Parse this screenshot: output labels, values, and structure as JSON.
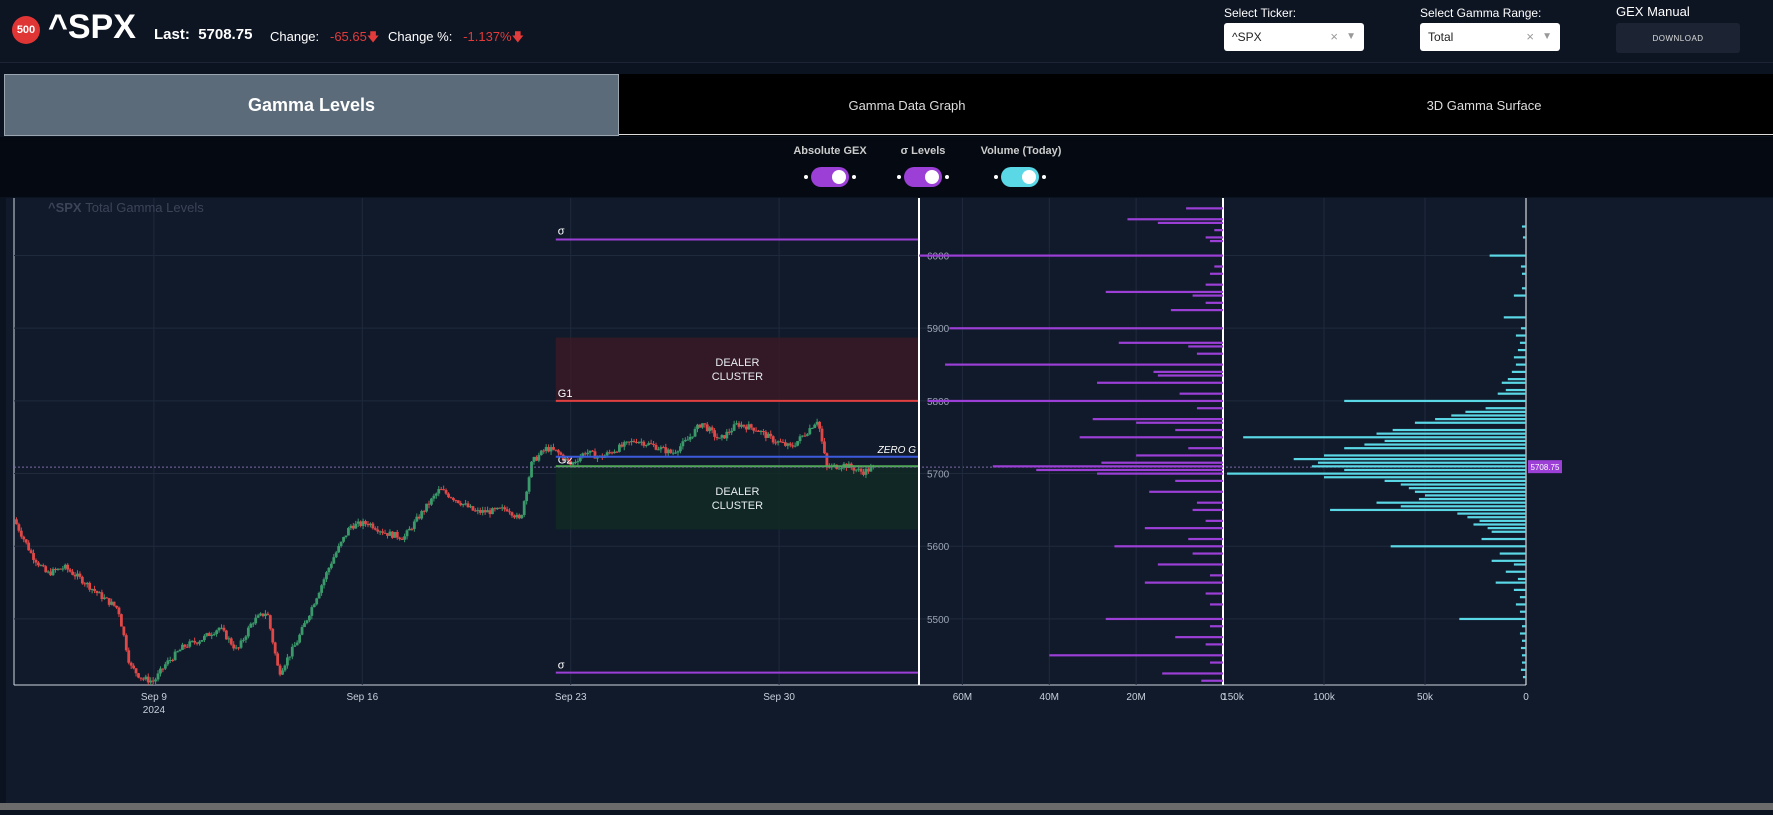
{
  "header": {
    "badge": "500",
    "ticker": "^SPX",
    "last_label": "Last:",
    "last_value": "5708.75",
    "change_label": "Change:",
    "change_value": "-65.65",
    "change_pct_label": "Change %:",
    "change_pct_value": "-1.137%",
    "down_arrow": "🡇",
    "select_ticker_label": "Select Ticker:",
    "select_ticker_value": "^SPX",
    "select_range_label": "Select Gamma Range:",
    "select_range_value": "Total",
    "clear_glyph": "×",
    "caret_glyph": "▼",
    "gex_manual_label": "GEX Manual",
    "download_label": "DOWNLOAD"
  },
  "tabs": [
    {
      "label": "Gamma Levels",
      "active": true
    },
    {
      "label": "Gamma Data Graph",
      "active": false
    },
    {
      "label": "3D Gamma Surface",
      "active": false
    }
  ],
  "toggles": [
    {
      "label": "Absolute GEX",
      "on": true,
      "color": "#9b3fd6"
    },
    {
      "label": "σ Levels",
      "on": true,
      "color": "#9b3fd6"
    },
    {
      "label": "Volume (Today)",
      "on": true,
      "color": "#5ad8e6"
    }
  ],
  "colors": {
    "up": "#3a9a6a",
    "down": "#e04848",
    "gex_bar": "#9b3fd6",
    "volume_bar": "#5ad8e6",
    "g1_line": "#e04040",
    "g2_line": "#4caf50",
    "zero_g_line": "#3b5bdb",
    "sigma_line": "#9b3fd6"
  },
  "chart_data": {
    "type": "candlestick",
    "title_ticker": "^SPX",
    "title": "Total Gamma Levels",
    "y_ticks": [
      6000,
      5900,
      5800,
      5700,
      5600,
      5500
    ],
    "ylim": [
      5409,
      6086
    ],
    "x_ticks": [
      {
        "label": "Sep 9",
        "sub": "2024",
        "day": 9
      },
      {
        "label": "Sep 16",
        "sub": "",
        "day": 16
      },
      {
        "label": "Sep 23",
        "sub": "",
        "day": 23
      },
      {
        "label": "Sep 30",
        "sub": "",
        "day": 30
      }
    ],
    "xlim": [
      4.3,
      34.7
    ],
    "price_path": [
      [
        4.3,
        5637
      ],
      [
        4.9,
        5588
      ],
      [
        5.4,
        5562
      ],
      [
        6.0,
        5571
      ],
      [
        6.6,
        5553
      ],
      [
        7.2,
        5532
      ],
      [
        7.8,
        5514
      ],
      [
        8.2,
        5435
      ],
      [
        8.6,
        5418
      ],
      [
        9.0,
        5414
      ],
      [
        9.4,
        5438
      ],
      [
        10.0,
        5462
      ],
      [
        10.6,
        5472
      ],
      [
        11.2,
        5488
      ],
      [
        11.8,
        5456
      ],
      [
        12.3,
        5496
      ],
      [
        12.8,
        5510
      ],
      [
        13.2,
        5425
      ],
      [
        13.8,
        5468
      ],
      [
        14.4,
        5525
      ],
      [
        15.0,
        5582
      ],
      [
        15.6,
        5628
      ],
      [
        16.2,
        5632
      ],
      [
        16.8,
        5618
      ],
      [
        17.4,
        5612
      ],
      [
        18.0,
        5646
      ],
      [
        18.6,
        5678
      ],
      [
        19.2,
        5663
      ],
      [
        19.8,
        5647
      ],
      [
        20.4,
        5648
      ],
      [
        20.9,
        5652
      ],
      [
        21.3,
        5635
      ],
      [
        21.7,
        5716
      ],
      [
        22.2,
        5735
      ],
      [
        22.6,
        5728
      ],
      [
        23.0,
        5712
      ],
      [
        23.5,
        5730
      ],
      [
        24.0,
        5722
      ],
      [
        24.6,
        5735
      ],
      [
        25.2,
        5746
      ],
      [
        25.8,
        5738
      ],
      [
        26.4,
        5728
      ],
      [
        26.9,
        5745
      ],
      [
        27.4,
        5770
      ],
      [
        28.0,
        5746
      ],
      [
        28.6,
        5768
      ],
      [
        29.2,
        5762
      ],
      [
        29.8,
        5746
      ],
      [
        30.4,
        5736
      ],
      [
        30.9,
        5756
      ],
      [
        31.3,
        5775
      ],
      [
        31.6,
        5708
      ],
      [
        32.2,
        5712
      ],
      [
        32.8,
        5702
      ],
      [
        33.2,
        5708
      ]
    ],
    "levels": {
      "sigma_upper": {
        "label": "σ",
        "value": 6022
      },
      "g1": {
        "label": "G1",
        "value": 5800
      },
      "zero_g": {
        "label": "ZERO G",
        "value": 5723
      },
      "g2": {
        "label": "G2",
        "value": 5710
      },
      "sigma_lower": {
        "label": "σ",
        "value": 5426
      }
    },
    "dealer_clusters": [
      {
        "label": "DEALER\nCLUSTER",
        "y_low": 5800,
        "y_high": 5887,
        "x_start": 22.5,
        "x_end": 34.7,
        "tone": "red"
      },
      {
        "label": "DEALER\nCLUSTER",
        "y_low": 5623,
        "y_high": 5710,
        "x_start": 22.5,
        "x_end": 34.7,
        "tone": "green"
      }
    ],
    "current_price": {
      "label": "5708.75",
      "value": 5708.75
    },
    "gex_panel": {
      "x_ticks": [
        "60M",
        "40M",
        "20M",
        "0"
      ],
      "xlim": [
        70,
        0
      ],
      "bars": [
        {
          "strike": 6065,
          "value": 8.5
        },
        {
          "strike": 6050,
          "value": 22
        },
        {
          "strike": 6045,
          "value": 15
        },
        {
          "strike": 6035,
          "value": 2
        },
        {
          "strike": 6025,
          "value": 4
        },
        {
          "strike": 6020,
          "value": 3
        },
        {
          "strike": 6000,
          "value": 70
        },
        {
          "strike": 5985,
          "value": 2
        },
        {
          "strike": 5975,
          "value": 3
        },
        {
          "strike": 5960,
          "value": 4
        },
        {
          "strike": 5950,
          "value": 27
        },
        {
          "strike": 5945,
          "value": 7
        },
        {
          "strike": 5935,
          "value": 4
        },
        {
          "strike": 5925,
          "value": 12
        },
        {
          "strike": 5900,
          "value": 63
        },
        {
          "strike": 5880,
          "value": 24
        },
        {
          "strike": 5875,
          "value": 8
        },
        {
          "strike": 5865,
          "value": 6
        },
        {
          "strike": 5850,
          "value": 64
        },
        {
          "strike": 5840,
          "value": 16
        },
        {
          "strike": 5835,
          "value": 15
        },
        {
          "strike": 5825,
          "value": 29
        },
        {
          "strike": 5810,
          "value": 10
        },
        {
          "strike": 5800,
          "value": 68
        },
        {
          "strike": 5790,
          "value": 6
        },
        {
          "strike": 5775,
          "value": 30
        },
        {
          "strike": 5770,
          "value": 20
        },
        {
          "strike": 5760,
          "value": 11
        },
        {
          "strike": 5750,
          "value": 33
        },
        {
          "strike": 5735,
          "value": 8
        },
        {
          "strike": 5725,
          "value": 20
        },
        {
          "strike": 5715,
          "value": 28
        },
        {
          "strike": 5710,
          "value": 53
        },
        {
          "strike": 5705,
          "value": 43
        },
        {
          "strike": 5700,
          "value": 29
        },
        {
          "strike": 5690,
          "value": 11
        },
        {
          "strike": 5675,
          "value": 17
        },
        {
          "strike": 5660,
          "value": 6
        },
        {
          "strike": 5650,
          "value": 7
        },
        {
          "strike": 5635,
          "value": 4
        },
        {
          "strike": 5625,
          "value": 18
        },
        {
          "strike": 5610,
          "value": 8
        },
        {
          "strike": 5600,
          "value": 25
        },
        {
          "strike": 5590,
          "value": 7
        },
        {
          "strike": 5575,
          "value": 15
        },
        {
          "strike": 5560,
          "value": 3
        },
        {
          "strike": 5550,
          "value": 18
        },
        {
          "strike": 5535,
          "value": 4
        },
        {
          "strike": 5520,
          "value": 3
        },
        {
          "strike": 5500,
          "value": 27
        },
        {
          "strike": 5490,
          "value": 3
        },
        {
          "strike": 5475,
          "value": 11
        },
        {
          "strike": 5465,
          "value": 4
        },
        {
          "strike": 5450,
          "value": 40
        },
        {
          "strike": 5440,
          "value": 3
        },
        {
          "strike": 5425,
          "value": 14
        },
        {
          "strike": 5415,
          "value": 5
        }
      ]
    },
    "volume_panel": {
      "x_ticks": [
        "150k",
        "100k",
        "50k",
        "0"
      ],
      "xlim": [
        150000,
        0
      ],
      "bars": [
        {
          "strike": 6040,
          "value": 2000
        },
        {
          "strike": 6025,
          "value": 1500
        },
        {
          "strike": 6000,
          "value": 18000
        },
        {
          "strike": 5985,
          "value": 2500
        },
        {
          "strike": 5975,
          "value": 2000
        },
        {
          "strike": 5955,
          "value": 2000
        },
        {
          "strike": 5945,
          "value": 6000
        },
        {
          "strike": 5915,
          "value": 11000
        },
        {
          "strike": 5900,
          "value": 2500
        },
        {
          "strike": 5890,
          "value": 5000
        },
        {
          "strike": 5880,
          "value": 3000
        },
        {
          "strike": 5870,
          "value": 4000
        },
        {
          "strike": 5860,
          "value": 6000
        },
        {
          "strike": 5850,
          "value": 5000
        },
        {
          "strike": 5840,
          "value": 7000
        },
        {
          "strike": 5830,
          "value": 9000
        },
        {
          "strike": 5825,
          "value": 12000
        },
        {
          "strike": 5815,
          "value": 10000
        },
        {
          "strike": 5810,
          "value": 14000
        },
        {
          "strike": 5800,
          "value": 90000
        },
        {
          "strike": 5790,
          "value": 20000
        },
        {
          "strike": 5785,
          "value": 30000
        },
        {
          "strike": 5780,
          "value": 37000
        },
        {
          "strike": 5775,
          "value": 45000
        },
        {
          "strike": 5770,
          "value": 55000
        },
        {
          "strike": 5760,
          "value": 66000
        },
        {
          "strike": 5755,
          "value": 74000
        },
        {
          "strike": 5750,
          "value": 140000
        },
        {
          "strike": 5745,
          "value": 70000
        },
        {
          "strike": 5740,
          "value": 80000
        },
        {
          "strike": 5735,
          "value": 90000
        },
        {
          "strike": 5725,
          "value": 100000
        },
        {
          "strike": 5720,
          "value": 115000
        },
        {
          "strike": 5715,
          "value": 103000
        },
        {
          "strike": 5710,
          "value": 106000
        },
        {
          "strike": 5705,
          "value": 90000
        },
        {
          "strike": 5700,
          "value": 148000
        },
        {
          "strike": 5695,
          "value": 100000
        },
        {
          "strike": 5690,
          "value": 70000
        },
        {
          "strike": 5685,
          "value": 62000
        },
        {
          "strike": 5680,
          "value": 58000
        },
        {
          "strike": 5675,
          "value": 55000
        },
        {
          "strike": 5670,
          "value": 50000
        },
        {
          "strike": 5665,
          "value": 53000
        },
        {
          "strike": 5660,
          "value": 74000
        },
        {
          "strike": 5655,
          "value": 62000
        },
        {
          "strike": 5650,
          "value": 97000
        },
        {
          "strike": 5645,
          "value": 34000
        },
        {
          "strike": 5640,
          "value": 29000
        },
        {
          "strike": 5635,
          "value": 23000
        },
        {
          "strike": 5630,
          "value": 26000
        },
        {
          "strike": 5625,
          "value": 19000
        },
        {
          "strike": 5620,
          "value": 17000
        },
        {
          "strike": 5610,
          "value": 22000
        },
        {
          "strike": 5600,
          "value": 67000
        },
        {
          "strike": 5590,
          "value": 13000
        },
        {
          "strike": 5580,
          "value": 17000
        },
        {
          "strike": 5575,
          "value": 6000
        },
        {
          "strike": 5565,
          "value": 10000
        },
        {
          "strike": 5555,
          "value": 4000
        },
        {
          "strike": 5550,
          "value": 15000
        },
        {
          "strike": 5540,
          "value": 6000
        },
        {
          "strike": 5530,
          "value": 3000
        },
        {
          "strike": 5520,
          "value": 5000
        },
        {
          "strike": 5510,
          "value": 3000
        },
        {
          "strike": 5500,
          "value": 33000
        },
        {
          "strike": 5490,
          "value": 2000
        },
        {
          "strike": 5480,
          "value": 3000
        },
        {
          "strike": 5470,
          "value": 2000
        },
        {
          "strike": 5460,
          "value": 2500
        },
        {
          "strike": 5450,
          "value": 2000
        },
        {
          "strike": 5440,
          "value": 2000
        },
        {
          "strike": 5430,
          "value": 2500
        },
        {
          "strike": 5420,
          "value": 1500
        }
      ]
    }
  }
}
